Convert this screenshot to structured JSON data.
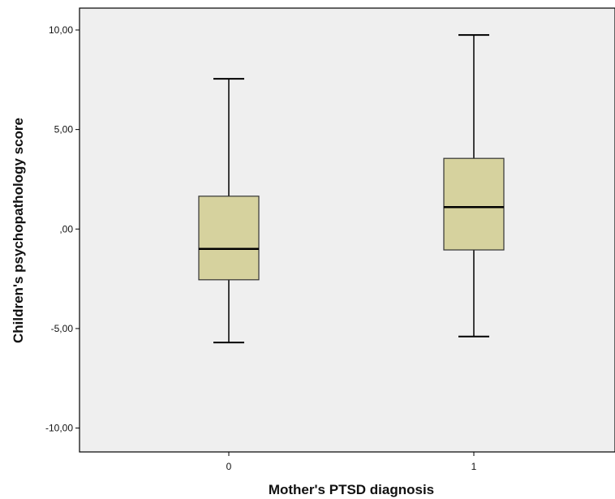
{
  "chart_data": {
    "type": "boxplot",
    "title": "",
    "xlabel": "Mother's PTSD diagnosis",
    "ylabel": "Children's psychopathology score",
    "categories": [
      "0",
      "1"
    ],
    "ylim": [
      -11.2,
      11.1
    ],
    "yticks": [
      -10,
      -5,
      0,
      5,
      10
    ],
    "ytick_labels": [
      "-10,00",
      "-5,00",
      ",00",
      "5,00",
      "10,00"
    ],
    "grid": false,
    "legend": "none",
    "colors": {
      "plot_background": "#efefef",
      "box_fill": "#d6d29e",
      "line": "#000000"
    },
    "boxes": [
      {
        "category": "0",
        "whisker_low": -5.7,
        "q1": -2.55,
        "median": -1.0,
        "q3": 1.65,
        "whisker_high": 7.55
      },
      {
        "category": "1",
        "whisker_low": -5.4,
        "q1": -1.05,
        "median": 1.1,
        "q3": 3.55,
        "whisker_high": 9.75
      }
    ]
  }
}
